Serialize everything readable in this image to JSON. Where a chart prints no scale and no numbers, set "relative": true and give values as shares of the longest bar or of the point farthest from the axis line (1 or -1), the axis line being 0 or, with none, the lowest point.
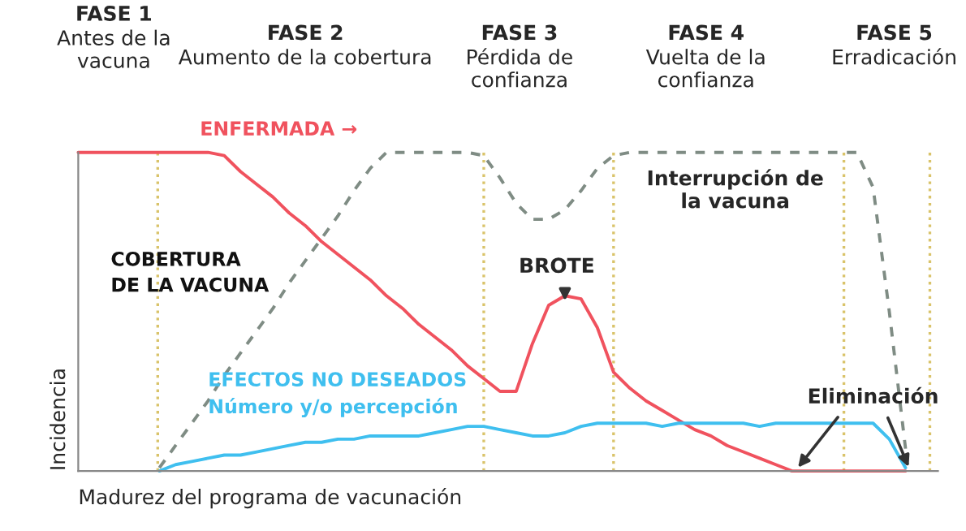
{
  "chart_data": {
    "type": "line",
    "relative": true,
    "xlabel": "Madurez del programa de vacunación",
    "ylabel": "Incidencia",
    "categories": [
      null,
      null,
      null,
      null,
      null,
      null,
      null,
      null,
      null,
      null,
      null,
      null,
      null,
      null,
      null,
      null,
      null,
      null,
      null,
      null,
      null,
      null,
      null,
      null,
      null,
      null,
      null,
      null,
      null,
      null,
      null,
      null,
      null,
      null,
      null,
      null,
      null,
      null,
      null,
      null,
      null,
      null,
      null,
      null,
      null,
      null,
      null,
      null,
      null,
      null,
      null,
      null,
      null,
      null
    ],
    "series": [
      {
        "name": "ENFERMADA →",
        "color": "#f0525e",
        "values": [
          1,
          1,
          1,
          1,
          1,
          1,
          1,
          1,
          1,
          0.99,
          0.94,
          0.9,
          0.86,
          0.81,
          0.77,
          0.72,
          0.68,
          0.64,
          0.6,
          0.55,
          0.51,
          0.46,
          0.42,
          0.38,
          0.33,
          0.29,
          0.25,
          0.25,
          0.4,
          0.52,
          0.55,
          0.54,
          0.45,
          0.31,
          0.26,
          0.22,
          0.19,
          0.16,
          0.13,
          0.11,
          0.08,
          0.06,
          0.04,
          0.02,
          0,
          0,
          0,
          0,
          0,
          0,
          0,
          0,
          null,
          null
        ]
      },
      {
        "name": "COBERTURA\nDE LA VACUNA",
        "color": "#7f8c84",
        "line_style": "dashed",
        "values": [
          null,
          null,
          null,
          null,
          null,
          0.01,
          0.08,
          0.15,
          0.22,
          0.3,
          0.37,
          0.44,
          0.51,
          0.59,
          0.66,
          0.73,
          0.8,
          0.88,
          0.95,
          1,
          1,
          1,
          1,
          1,
          1,
          0.99,
          0.92,
          0.84,
          0.79,
          0.79,
          0.82,
          0.88,
          0.95,
          0.99,
          1,
          1,
          1,
          1,
          1,
          1,
          1,
          1,
          1,
          1,
          1,
          1,
          1,
          1,
          1,
          0.89,
          0.5,
          0.07,
          null,
          null
        ]
      },
      {
        "name": "EFECTOS NO DESEADOS\nNúmero y/o percepción",
        "color": "#3fbfef",
        "values": [
          null,
          null,
          null,
          null,
          null,
          0,
          0.02,
          0.03,
          0.04,
          0.05,
          0.05,
          0.06,
          0.07,
          0.08,
          0.09,
          0.09,
          0.1,
          0.1,
          0.11,
          0.11,
          0.11,
          0.11,
          0.12,
          0.13,
          0.14,
          0.14,
          0.13,
          0.12,
          0.11,
          0.11,
          0.12,
          0.14,
          0.15,
          0.15,
          0.15,
          0.15,
          0.14,
          0.15,
          0.15,
          0.15,
          0.15,
          0.15,
          0.14,
          0.15,
          0.15,
          0.15,
          0.15,
          0.15,
          0.15,
          0.15,
          0.1,
          0.01,
          null,
          null
        ]
      }
    ],
    "annotations": [
      "FASE 1\nAntes de la\nvacuna",
      "FASE 2\nAumento de la cobertura",
      "FASE 3\nPérdida de\nconfianza",
      "FASE 4\nVuelta de la\nconfianza",
      "FASE 5\nErradicación",
      "BROTE",
      "Interrupción de\nla vacuna",
      "Eliminación"
    ],
    "legend": false,
    "grid": "x"
  }
}
